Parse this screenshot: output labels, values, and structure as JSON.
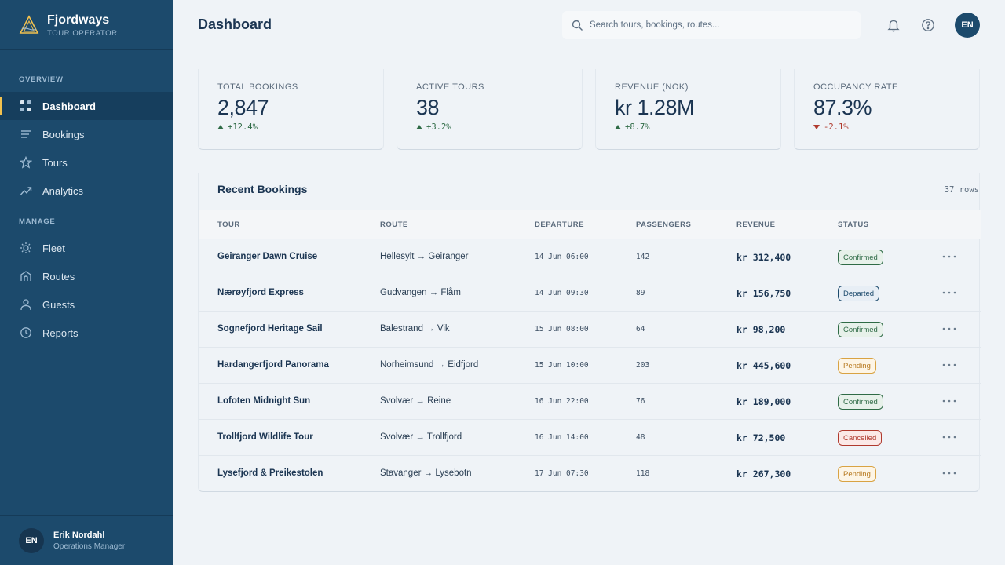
{
  "brand": {
    "name": "Fjordways",
    "subtitle": "TOUR OPERATOR"
  },
  "sidebar": {
    "sections": [
      {
        "label": "OVERVIEW"
      },
      {
        "label": "MANAGE"
      }
    ],
    "items": [
      {
        "label": "Dashboard",
        "icon": "grid-icon",
        "active": true
      },
      {
        "label": "Bookings",
        "icon": "list-icon"
      },
      {
        "label": "Tours",
        "icon": "star-icon"
      },
      {
        "label": "Analytics",
        "icon": "trend-icon"
      },
      {
        "label": "Fleet",
        "icon": "sun-icon"
      },
      {
        "label": "Routes",
        "icon": "route-icon"
      },
      {
        "label": "Guests",
        "icon": "user-icon"
      },
      {
        "label": "Reports",
        "icon": "clock-icon"
      }
    ],
    "user": {
      "initials": "EN",
      "name": "Erik Nordahl",
      "role": "Operations Manager"
    }
  },
  "header": {
    "title": "Dashboard",
    "search_placeholder": "Search tours, bookings, routes...",
    "avatar_initials": "EN"
  },
  "stats": [
    {
      "label": "TOTAL BOOKINGS",
      "value": "2,847",
      "change": "+12.4%",
      "direction": "up"
    },
    {
      "label": "ACTIVE TOURS",
      "value": "38",
      "change": "+3.2%",
      "direction": "up"
    },
    {
      "label": "REVENUE (NOK)",
      "value": "kr 1.28M",
      "change": "+8.7%",
      "direction": "up"
    },
    {
      "label": "OCCUPANCY RATE",
      "value": "87.3%",
      "change": "-2.1%",
      "direction": "down"
    }
  ],
  "table": {
    "title": "Recent Bookings",
    "row_count": "37 rows",
    "columns": [
      "TOUR",
      "ROUTE",
      "DEPARTURE",
      "PASSENGERS",
      "REVENUE",
      "STATUS"
    ],
    "rows": [
      {
        "tour": "Geiranger Dawn Cruise",
        "route": "Hellesylt → Geiranger",
        "departure": "14 Jun 06:00",
        "passengers": "142",
        "revenue": "kr 312,400",
        "status": "Confirmed"
      },
      {
        "tour": "Nærøyfjord Express",
        "route": "Gudvangen → Flåm",
        "departure": "14 Jun 09:30",
        "passengers": "89",
        "revenue": "kr 156,750",
        "status": "Departed"
      },
      {
        "tour": "Sognefjord Heritage Sail",
        "route": "Balestrand → Vik",
        "departure": "15 Jun 08:00",
        "passengers": "64",
        "revenue": "kr 98,200",
        "status": "Confirmed"
      },
      {
        "tour": "Hardangerfjord Panorama",
        "route": "Norheimsund → Eidfjord",
        "departure": "15 Jun 10:00",
        "passengers": "203",
        "revenue": "kr 445,600",
        "status": "Pending"
      },
      {
        "tour": "Lofoten Midnight Sun",
        "route": "Svolvær → Reine",
        "departure": "16 Jun 22:00",
        "passengers": "76",
        "revenue": "kr 189,000",
        "status": "Confirmed"
      },
      {
        "tour": "Trollfjord Wildlife Tour",
        "route": "Svolvær → Trollfjord",
        "departure": "16 Jun 14:00",
        "passengers": "48",
        "revenue": "kr 72,500",
        "status": "Cancelled"
      },
      {
        "tour": "Lysefjord & Preikestolen",
        "route": "Stavanger → Lysebotn",
        "departure": "17 Jun 07:30",
        "passengers": "118",
        "revenue": "kr 267,300",
        "status": "Pending"
      }
    ]
  }
}
